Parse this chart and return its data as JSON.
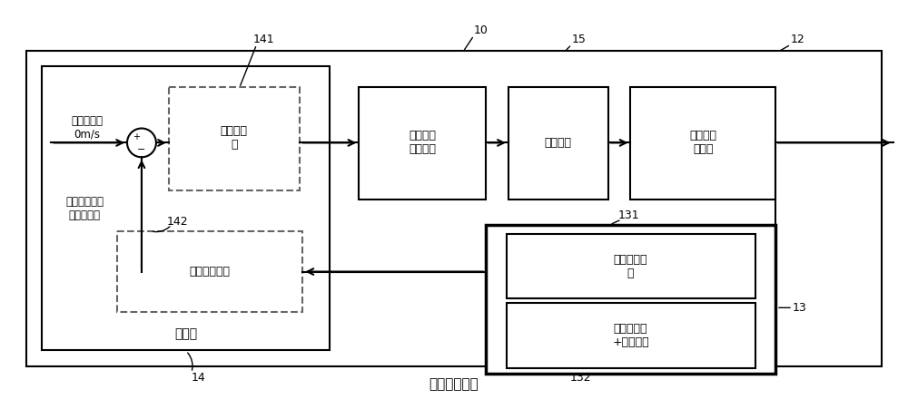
{
  "title": "负载增稳装置",
  "label_10": "10",
  "label_12": "12",
  "label_13": "13",
  "label_14": "14",
  "label_15": "15",
  "label_141": "141",
  "label_142": "142",
  "label_131": "131",
  "label_132": "132",
  "box_processor_label": "处理器",
  "box_digital_label": "数字控制\n器",
  "box_kalman_label": "卡尔曼滤波器",
  "box_motor_drive_label": "电机驱动\n逻辑电路",
  "box_stabilizer_label": "增稳电机",
  "box_parallel_label": "平行四边\n形机构",
  "box_imu_label": "惯性测量单\n元",
  "box_odometer_label": "视觉里程计\n+磁编码器",
  "text_target_speed": "目标速度：\n0m/s",
  "text_second_end": "第二端相对于\n地面的速度",
  "bg_color": "#ffffff",
  "box_color": "#000000",
  "line_color": "#000000",
  "dashed_color": "#555555",
  "fig_width": 10.0,
  "fig_height": 4.51,
  "dpi": 100
}
